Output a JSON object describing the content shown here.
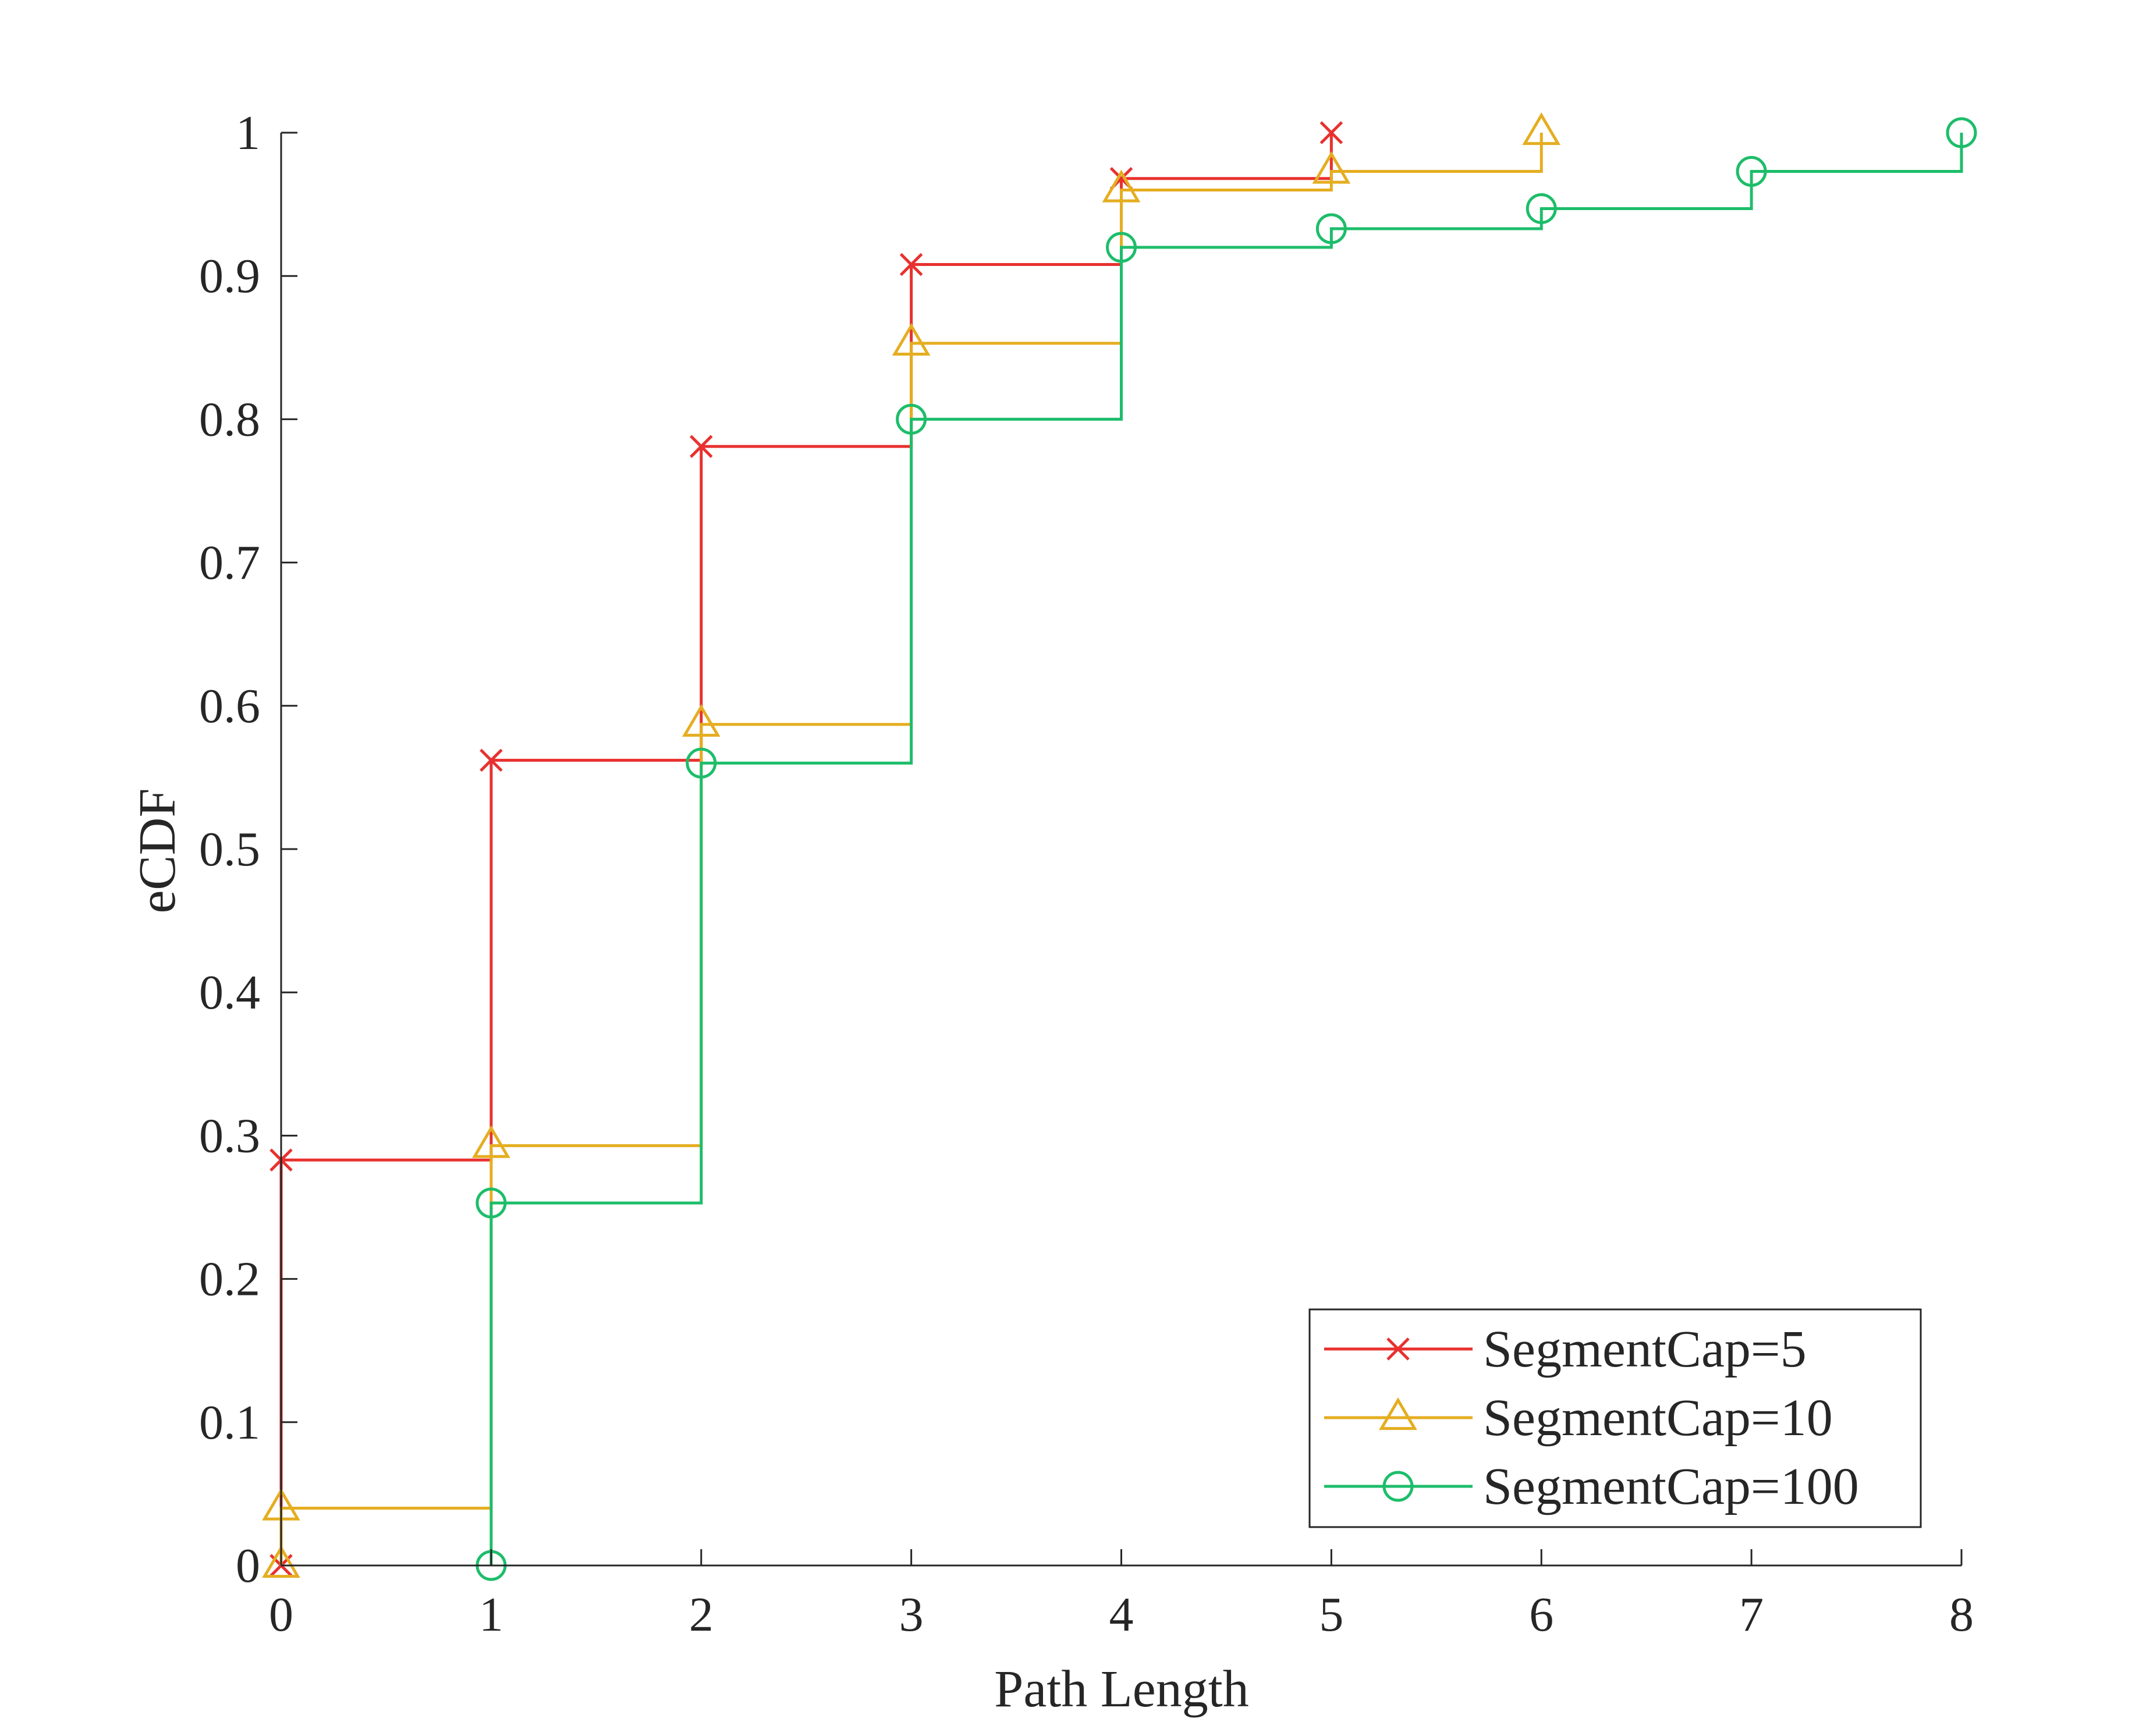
{
  "chart_data": {
    "type": "line",
    "subtype": "step-ecdf",
    "title": "",
    "xlabel": "Path Length",
    "ylabel": "eCDF",
    "xlim": [
      0,
      8
    ],
    "ylim": [
      0,
      1
    ],
    "xticks": [
      "0",
      "1",
      "2",
      "3",
      "4",
      "5",
      "6",
      "7",
      "8"
    ],
    "yticks": [
      "0",
      "0.1",
      "0.2",
      "0.3",
      "0.4",
      "0.5",
      "0.6",
      "0.7",
      "0.8",
      "0.9",
      "1"
    ],
    "grid": false,
    "legend_position": "bottom-right",
    "series": [
      {
        "name": "SegmentCap=5",
        "color": "#e8312f",
        "marker": "x",
        "x": [
          0,
          0,
          1,
          2,
          3,
          4,
          5
        ],
        "y": [
          0,
          0.283,
          0.562,
          0.781,
          0.908,
          0.968,
          1.0
        ]
      },
      {
        "name": "SegmentCap=10",
        "color": "#e5ad20",
        "marker": "triangle",
        "x": [
          0,
          0,
          1,
          2,
          3,
          4,
          5,
          6
        ],
        "y": [
          0,
          0.04,
          0.293,
          0.587,
          0.853,
          0.96,
          0.973,
          1.0
        ]
      },
      {
        "name": "SegmentCap=100",
        "color": "#1dbd6a",
        "marker": "circle",
        "x": [
          1,
          1,
          2,
          3,
          4,
          5,
          6,
          7,
          8
        ],
        "y": [
          0,
          0.253,
          0.56,
          0.8,
          0.92,
          0.933,
          0.947,
          0.973,
          1.0
        ]
      }
    ]
  }
}
